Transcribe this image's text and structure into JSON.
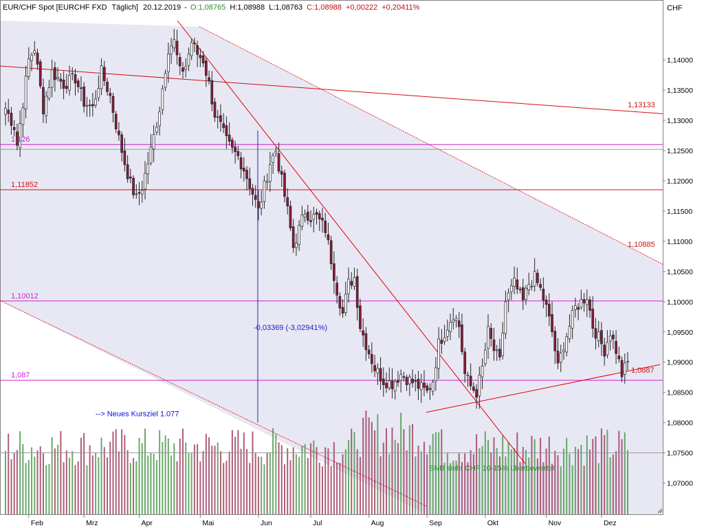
{
  "header": {
    "instrument": "EUR/CHF Spot [EURCHF FXD",
    "period": "Täglich]",
    "date": "20.12.2019",
    "open": "O:1,08765",
    "high": "H:1,08988",
    "low": "L:1,08763",
    "close": "C:1,08988",
    "change": "+0,00222",
    "change_pct": "+0,20411%"
  },
  "currency_label": "CHF",
  "colors": {
    "bull": "#2e7d32",
    "bear": "#8b1a3a",
    "hline_red": "#d01010",
    "hline_magenta": "#d020d0",
    "trend_red": "#e00000",
    "measure_blue": "#2020c0",
    "annotation_blue": "#1010d0",
    "annotation_green": "#2a8a2a",
    "channel_fill": "#e6e6f4"
  },
  "chart_data": {
    "type": "candlestick",
    "title": "EUR/CHF Spot [EURCHF FXD  Täglich]",
    "y_axis": {
      "label": "CHF",
      "range": [
        1.0662,
        1.1465
      ],
      "ticks": [
        "1,07000",
        "1,07500",
        "1,08000",
        "1,08500",
        "1,09000",
        "1,09500",
        "1,10000",
        "1,10500",
        "1,11000",
        "1,11500",
        "1,12000",
        "1,12500",
        "1,13000",
        "1,13500",
        "1,14000"
      ],
      "tick_values": [
        1.07,
        1.075,
        1.08,
        1.085,
        1.09,
        1.095,
        1.1,
        1.105,
        1.11,
        1.115,
        1.12,
        1.125,
        1.13,
        1.135,
        1.14
      ]
    },
    "x_axis": {
      "months": [
        "Feb",
        "Mrz",
        "Apr",
        "Mai",
        "Jun",
        "Jul",
        "Aug",
        "Sep",
        "Okt",
        "Nov",
        "Dez"
      ],
      "month_bar_index": [
        8,
        27,
        46,
        67,
        87,
        105,
        125,
        145,
        165,
        186,
        205
      ],
      "total_bars": 215
    },
    "anchors": [
      {
        "i": 0,
        "v": 1.132
      },
      {
        "i": 3,
        "v": 1.129
      },
      {
        "i": 4,
        "v": 1.126
      },
      {
        "i": 8,
        "v": 1.14
      },
      {
        "i": 10,
        "v": 1.142
      },
      {
        "i": 13,
        "v": 1.132
      },
      {
        "i": 16,
        "v": 1.138
      },
      {
        "i": 20,
        "v": 1.136
      },
      {
        "i": 24,
        "v": 1.137
      },
      {
        "i": 27,
        "v": 1.133
      },
      {
        "i": 30,
        "v": 1.132
      },
      {
        "i": 33,
        "v": 1.138
      },
      {
        "i": 36,
        "v": 1.134
      },
      {
        "i": 39,
        "v": 1.127
      },
      {
        "i": 41,
        "v": 1.123
      },
      {
        "i": 43,
        "v": 1.1195
      },
      {
        "i": 45,
        "v": 1.117
      },
      {
        "i": 47,
        "v": 1.119
      },
      {
        "i": 50,
        "v": 1.125
      },
      {
        "i": 53,
        "v": 1.132
      },
      {
        "i": 56,
        "v": 1.142
      },
      {
        "i": 58,
        "v": 1.143
      },
      {
        "i": 60,
        "v": 1.138
      },
      {
        "i": 62,
        "v": 1.139
      },
      {
        "i": 64,
        "v": 1.143
      },
      {
        "i": 66,
        "v": 1.141
      },
      {
        "i": 68,
        "v": 1.14
      },
      {
        "i": 70,
        "v": 1.136
      },
      {
        "i": 72,
        "v": 1.131
      },
      {
        "i": 74,
        "v": 1.129
      },
      {
        "i": 76,
        "v": 1.1265
      },
      {
        "i": 78,
        "v": 1.125
      },
      {
        "i": 80,
        "v": 1.124
      },
      {
        "i": 82,
        "v": 1.122
      },
      {
        "i": 85,
        "v": 1.118
      },
      {
        "i": 87,
        "v": 1.115
      },
      {
        "i": 89,
        "v": 1.119
      },
      {
        "i": 91,
        "v": 1.123
      },
      {
        "i": 93,
        "v": 1.125
      },
      {
        "i": 95,
        "v": 1.12
      },
      {
        "i": 97,
        "v": 1.115
      },
      {
        "i": 99,
        "v": 1.109
      },
      {
        "i": 101,
        "v": 1.112
      },
      {
        "i": 103,
        "v": 1.115
      },
      {
        "i": 105,
        "v": 1.114
      },
      {
        "i": 107,
        "v": 1.114
      },
      {
        "i": 110,
        "v": 1.112
      },
      {
        "i": 112,
        "v": 1.107
      },
      {
        "i": 114,
        "v": 1.102
      },
      {
        "i": 116,
        "v": 1.098
      },
      {
        "i": 118,
        "v": 1.103
      },
      {
        "i": 120,
        "v": 1.104
      },
      {
        "i": 122,
        "v": 1.096
      },
      {
        "i": 124,
        "v": 1.093
      },
      {
        "i": 127,
        "v": 1.089
      },
      {
        "i": 130,
        "v": 1.087
      },
      {
        "i": 133,
        "v": 1.0865
      },
      {
        "i": 136,
        "v": 1.088
      },
      {
        "i": 139,
        "v": 1.087
      },
      {
        "i": 142,
        "v": 1.086
      },
      {
        "i": 145,
        "v": 1.085
      },
      {
        "i": 147,
        "v": 1.087
      },
      {
        "i": 149,
        "v": 1.093
      },
      {
        "i": 152,
        "v": 1.096
      },
      {
        "i": 154,
        "v": 1.098
      },
      {
        "i": 156,
        "v": 1.096
      },
      {
        "i": 158,
        "v": 1.088
      },
      {
        "i": 160,
        "v": 1.086
      },
      {
        "i": 162,
        "v": 1.085
      },
      {
        "i": 164,
        "v": 1.089
      },
      {
        "i": 166,
        "v": 1.095
      },
      {
        "i": 168,
        "v": 1.092
      },
      {
        "i": 170,
        "v": 1.09
      },
      {
        "i": 172,
        "v": 1.1
      },
      {
        "i": 175,
        "v": 1.103
      },
      {
        "i": 178,
        "v": 1.1
      },
      {
        "i": 180,
        "v": 1.103
      },
      {
        "i": 182,
        "v": 1.104
      },
      {
        "i": 184,
        "v": 1.102
      },
      {
        "i": 186,
        "v": 1.099
      },
      {
        "i": 188,
        "v": 1.095
      },
      {
        "i": 190,
        "v": 1.089
      },
      {
        "i": 192,
        "v": 1.093
      },
      {
        "i": 194,
        "v": 1.096
      },
      {
        "i": 196,
        "v": 1.099
      },
      {
        "i": 198,
        "v": 1.1
      },
      {
        "i": 200,
        "v": 1.101
      },
      {
        "i": 202,
        "v": 1.096
      },
      {
        "i": 204,
        "v": 1.094
      },
      {
        "i": 206,
        "v": 1.092
      },
      {
        "i": 208,
        "v": 1.095
      },
      {
        "i": 210,
        "v": 1.092
      },
      {
        "i": 212,
        "v": 1.088
      },
      {
        "i": 214,
        "v": 1.0899
      }
    ],
    "horizontal_lines": [
      {
        "value": 1.13133,
        "label": "1,13133",
        "color": "hline_red",
        "sloped_to": 1.1311,
        "from": 1.139,
        "label_side": "right"
      },
      {
        "value": 1.126,
        "label": "1,126",
        "color": "hline_magenta",
        "label_side": "left"
      },
      {
        "value": 1.1252,
        "label": "",
        "color": "gray",
        "label_side": "none"
      },
      {
        "value": 1.11852,
        "label": "1,11852",
        "color": "hline_red",
        "label_side": "left"
      },
      {
        "value": 1.10012,
        "label": "1,10012",
        "color": "hline_magenta",
        "label_side": "left"
      },
      {
        "value": 1.087,
        "label": "1,087",
        "color": "hline_magenta",
        "label_side": "left"
      },
      {
        "value": 1.075,
        "label": "",
        "color": "gray",
        "label_side": "none"
      }
    ],
    "level_labels_right": [
      {
        "value": 1.10885,
        "label": "1,10885"
      },
      {
        "value": 1.0887,
        "label": "1,0887"
      }
    ],
    "measure": {
      "label": "-0,03369 (-3,02941%)",
      "from": 1.1283,
      "to": 1.08,
      "bar_index": 87
    },
    "annotations": [
      {
        "text": "--> Neues Kursziel 1.077",
        "value": 1.0815,
        "bar_index": 30,
        "color": "annotation_blue"
      },
      {
        "text": "SNB sieht CHF 10-15% überbewertet",
        "value": 1.0725,
        "bar_index": 146,
        "color": "annotation_green"
      }
    ],
    "volume": {
      "max_value": 100
    }
  }
}
